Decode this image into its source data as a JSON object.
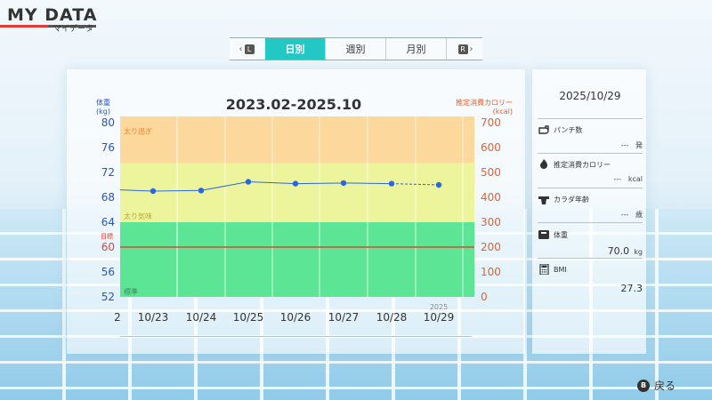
{
  "app": {
    "title": "MY DATA",
    "subtitle": "マイデータ"
  },
  "tabs": {
    "prev_key": "L",
    "next_key": "R",
    "items": [
      {
        "label": "日別",
        "active": true
      },
      {
        "label": "週別",
        "active": false
      },
      {
        "label": "月別",
        "active": false
      }
    ]
  },
  "chart": {
    "date_range": "2023.02-2025.10",
    "left_axis_title": "体重",
    "left_axis_unit": "(kg)",
    "right_axis_title": "推定消費カロリー",
    "right_axis_unit": "(kcal)",
    "zone_labels": {
      "over": "太り過ぎ",
      "tendency": "太り気味",
      "goal": "目標",
      "standard": "標準"
    },
    "year_label": "2025",
    "colors": {
      "zone_over": "#fcd89c",
      "zone_tendency": "#edf59c",
      "zone_standard": "#5de596",
      "goal_line": "#e0443a",
      "weight_line": "#2a66e0"
    }
  },
  "chart_data": {
    "type": "line",
    "x_tick_labels": [
      "2",
      "10/23",
      "10/24",
      "10/25",
      "10/26",
      "10/27",
      "10/28",
      "10/29"
    ],
    "y_left_ticks": [
      80,
      76,
      72,
      68,
      64,
      60,
      56,
      52
    ],
    "y_left_range": [
      52,
      81
    ],
    "y_right_ticks": [
      700,
      600,
      500,
      400,
      300,
      200,
      100,
      0
    ],
    "y_right_range": [
      0,
      725
    ],
    "goal_weight": 60,
    "series": [
      {
        "x": [
          "10/23",
          "10/24",
          "10/25",
          "10/26",
          "10/27",
          "10/28",
          "10/29"
        ],
        "values": [
          69.0,
          69.1,
          70.5,
          70.2,
          70.3,
          70.2,
          70.0
        ],
        "dashed_last_segment": true
      }
    ]
  },
  "info": {
    "date": "2025/10/29",
    "rows": [
      {
        "icon": "punch-icon",
        "label": "パンチ数",
        "value": "---",
        "unit": "発"
      },
      {
        "icon": "flame-icon",
        "label": "推定消費カロリー",
        "value": "---",
        "unit": "kcal"
      },
      {
        "icon": "muscle-icon",
        "label": "カラダ年齢",
        "value": "---",
        "unit": "歳"
      },
      {
        "icon": "scale-icon",
        "label": "体重",
        "value": "70.0",
        "unit": "kg"
      },
      {
        "icon": "calculator-icon",
        "label": "BMI",
        "value": "27.3",
        "unit": ""
      }
    ]
  },
  "footer": {
    "back_button_key": "B",
    "back_label": "戻る"
  }
}
